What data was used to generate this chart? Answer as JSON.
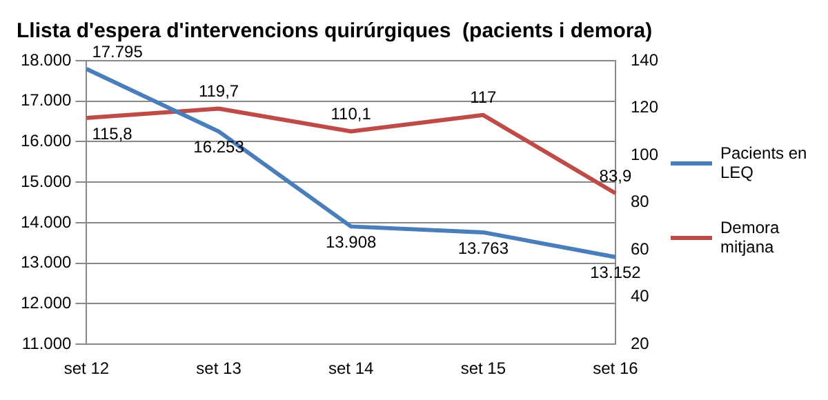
{
  "chart_data": {
    "type": "line",
    "title": "Llista d'espera d'intervencions quirúrgiques  (pacients i demora)",
    "categories": [
      "set 12",
      "set 13",
      "set 14",
      "set 15",
      "set 16"
    ],
    "series": [
      {
        "name": "Pacients en LEQ",
        "color": "#4a7ebb",
        "values": [
          17795,
          16253,
          13908,
          13763,
          13152
        ],
        "value_labels": [
          "17.795",
          "16.253",
          "13.908",
          "13.763",
          "13.152"
        ]
      },
      {
        "name": "Demora mitjana",
        "color": "#be4b48",
        "axis": "y2",
        "values": [
          115.8,
          119.7,
          110.1,
          117,
          83.9
        ],
        "value_labels": [
          "115,8",
          "119,7",
          "110,1",
          "117",
          "83,9"
        ]
      }
    ],
    "ylim": [
      11000,
      18000
    ],
    "yticks": [
      {
        "value": 11000,
        "label": "11.000"
      },
      {
        "value": 12000,
        "label": "12.000"
      },
      {
        "value": 13000,
        "label": "13.000"
      },
      {
        "value": 14000,
        "label": "14.000"
      },
      {
        "value": 15000,
        "label": "15.000"
      },
      {
        "value": 16000,
        "label": "16.000"
      },
      {
        "value": 17000,
        "label": "17.000"
      },
      {
        "value": 18000,
        "label": "18.000"
      }
    ],
    "y2lim": [
      20,
      140
    ],
    "y2ticks": [
      20,
      40,
      60,
      80,
      100,
      120,
      140
    ],
    "grid": "y",
    "legend": "right",
    "marker": "none",
    "line_style": "solid"
  }
}
